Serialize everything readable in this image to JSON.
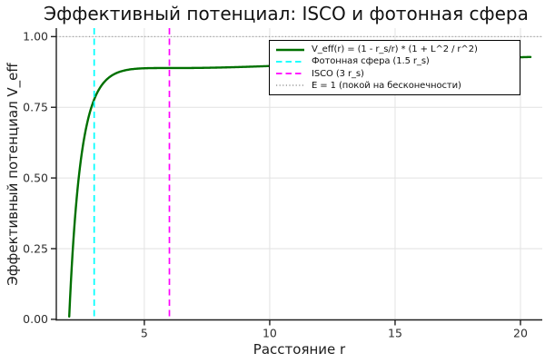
{
  "chart_data": {
    "type": "line",
    "title": "Эффективный потенциал: ISCO и фотонная сфера",
    "xlabel": "Расстояние r",
    "ylabel": "Эффективный потенциал V_eff",
    "xlim": [
      1.49,
      20.87
    ],
    "ylim": [
      -0.002,
      1.03
    ],
    "x_ticks": [
      5,
      10,
      15,
      20
    ],
    "x_tick_labels": [
      "5",
      "10",
      "15",
      "20"
    ],
    "y_ticks": [
      0,
      0.25,
      0.5,
      0.75,
      1.0
    ],
    "y_tick_labels": [
      "0.00",
      "0.25",
      "0.50",
      "0.75",
      "1.00"
    ],
    "grid": true,
    "legend_position": "top-right",
    "colors": {
      "axis": "#1f1f1f",
      "grid": "#e2e2e2",
      "tick_label": "#2e2e2e",
      "background": "#ffffff"
    },
    "series": [
      {
        "name": "V_eff(r) = (1 - r_s/r) * (1 + L^2 / r^2)",
        "color": "#007000",
        "style": "solid",
        "params": {
          "r_s": 2,
          "L2": 12,
          "r_min": 2.005,
          "r_max": 20.4
        },
        "points": [
          [
            2.01,
            0.02
          ],
          [
            2.1,
            0.177
          ],
          [
            2.2,
            0.316
          ],
          [
            2.35,
            0.473
          ],
          [
            2.5,
            0.584
          ],
          [
            2.75,
            0.705
          ],
          [
            3.0,
            0.778
          ],
          [
            3.25,
            0.822
          ],
          [
            3.5,
            0.848
          ],
          [
            4.0,
            0.875
          ],
          [
            4.5,
            0.885
          ],
          [
            5.0,
            0.888
          ],
          [
            5.5,
            0.889
          ],
          [
            6.0,
            0.889
          ],
          [
            7.0,
            0.889
          ],
          [
            8.0,
            0.891
          ],
          [
            9.0,
            0.893
          ],
          [
            10.0,
            0.896
          ],
          [
            11.0,
            0.899
          ],
          [
            12.0,
            0.903
          ],
          [
            13.0,
            0.906
          ],
          [
            14.0,
            0.91
          ],
          [
            15.0,
            0.913
          ],
          [
            16.0,
            0.916
          ],
          [
            17.0,
            0.919
          ],
          [
            18.0,
            0.922
          ],
          [
            19.0,
            0.924
          ],
          [
            20.4,
            0.928
          ]
        ]
      }
    ],
    "vlines": [
      {
        "x": 3,
        "name": "Фотонная сфера (1.5 r_s)",
        "color": "#00ffff",
        "style": "dashed"
      },
      {
        "x": 6,
        "name": "ISCO (3 r_s)",
        "color": "#ff00ff",
        "style": "dashed"
      }
    ],
    "hlines": [
      {
        "y": 1,
        "name": "E = 1 (покой на бесконечности)",
        "color": "#9b9b9b",
        "style": "dotted"
      }
    ]
  }
}
